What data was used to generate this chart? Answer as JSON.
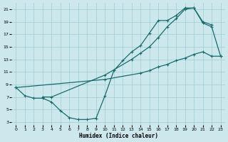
{
  "xlabel": "Humidex (Indice chaleur)",
  "bg_color": "#cce8ec",
  "grid_color": "#9ecdd0",
  "line_color": "#1a6b6e",
  "xlim": [
    -0.5,
    23.5
  ],
  "ylim": [
    2.5,
    22.0
  ],
  "yticks": [
    3,
    5,
    7,
    9,
    11,
    13,
    15,
    17,
    19,
    21
  ],
  "xticks": [
    0,
    1,
    2,
    3,
    4,
    5,
    6,
    7,
    8,
    9,
    10,
    11,
    12,
    13,
    14,
    15,
    16,
    17,
    18,
    19,
    20,
    21,
    22,
    23
  ],
  "curve1_x": [
    0,
    1,
    2,
    3,
    4,
    5,
    6,
    7,
    8,
    9,
    10,
    11,
    12,
    13,
    14,
    15,
    16,
    17,
    18,
    19,
    20,
    21,
    22,
    23
  ],
  "curve1_y": [
    8.5,
    7.2,
    6.8,
    6.8,
    6.2,
    4.8,
    3.7,
    3.4,
    3.4,
    3.6,
    7.2,
    11.2,
    12.8,
    14.2,
    15.2,
    17.2,
    19.2,
    19.2,
    20.0,
    21.2,
    21.2,
    18.8,
    18.2,
    13.5
  ],
  "curve2_x": [
    3,
    4,
    10,
    13,
    14,
    15,
    16,
    17,
    18,
    19,
    20,
    21,
    22
  ],
  "curve2_y": [
    7.0,
    7.0,
    10.5,
    13.0,
    14.0,
    15.0,
    16.5,
    18.2,
    19.5,
    21.0,
    21.2,
    19.0,
    18.5
  ],
  "curve3_x": [
    0,
    10,
    14,
    15,
    16,
    17,
    18,
    19,
    20,
    21,
    22,
    23
  ],
  "curve3_y": [
    8.5,
    9.8,
    10.8,
    11.2,
    11.8,
    12.2,
    12.8,
    13.2,
    13.8,
    14.2,
    13.5,
    13.5
  ]
}
